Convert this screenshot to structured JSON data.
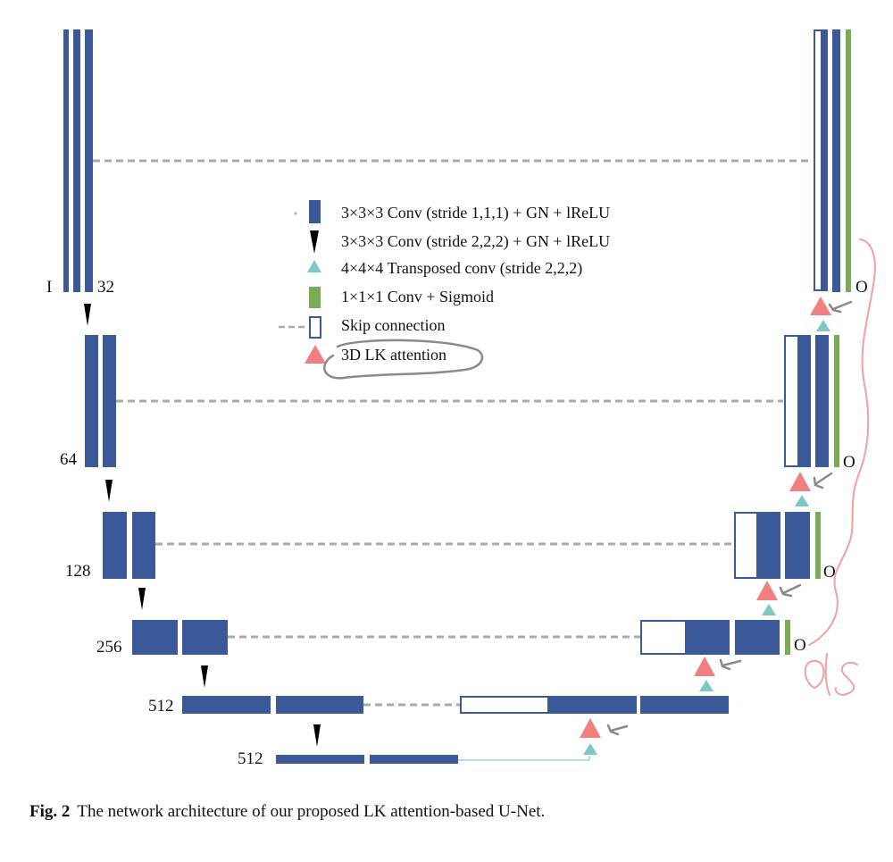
{
  "colors": {
    "conv": "#3b5998",
    "sigmoid": "#7aab55",
    "transposed": "#7ec8c4",
    "attention": "#f08080",
    "skip": "#aaaaaa",
    "annotation_gray": "#8a8a8a",
    "annotation_pink": "#f4a0a0"
  },
  "levels": {
    "l1": {
      "channels": "32",
      "input": "I",
      "output": "O"
    },
    "l2": {
      "channels": "64",
      "output": "O"
    },
    "l3": {
      "channels": "128",
      "output": "O"
    },
    "l4": {
      "channels": "256",
      "output": "O"
    },
    "l5": {
      "channels": "512"
    },
    "l6": {
      "channels": "512"
    }
  },
  "legend": {
    "conv": "3×3×3 Conv (stride 1,1,1) + GN + lReLU",
    "down": "3×3×3 Conv (stride 2,2,2) + GN + lReLU",
    "transposed": "4×4×4 Transposed conv (stride 2,2,2)",
    "sigmoid": "1×1×1 Conv + Sigmoid",
    "skip": "Skip connection",
    "attention": "3D LK attention"
  },
  "caption": {
    "label": "Fig. 2",
    "text": "The network architecture of our proposed LK attention-based U-Net."
  },
  "handwriting": {
    "text": "ds"
  }
}
